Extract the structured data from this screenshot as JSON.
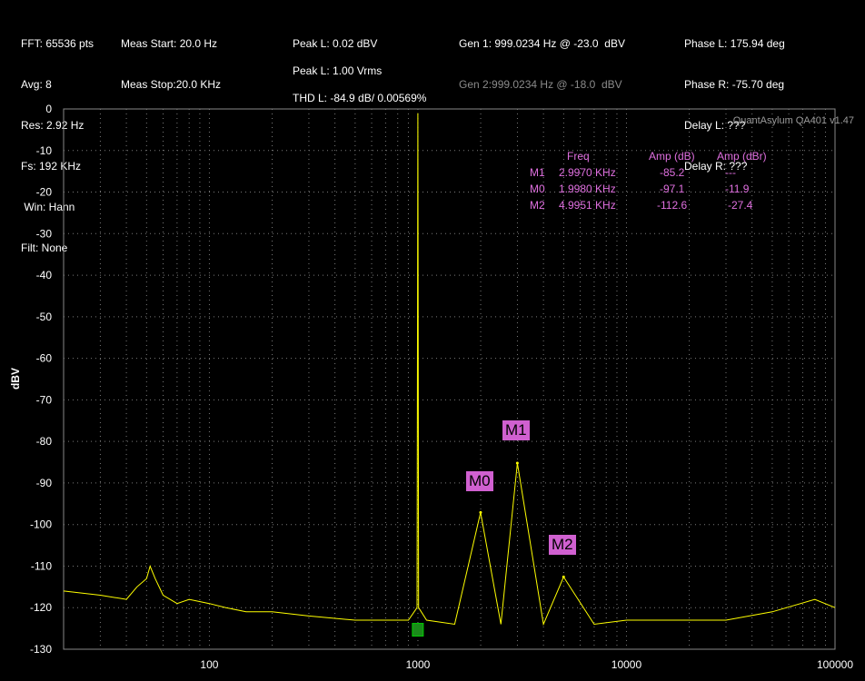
{
  "header": {
    "col1": [
      "FFT: 65536 pts",
      "Avg: 8",
      "Res: 2.92 Hz",
      "Fs: 192 KHz",
      " Win: Hann",
      "Filt: None"
    ],
    "col2": [
      "Meas Start: 20.0 Hz",
      "Meas Stop:20.0 KHz"
    ],
    "col3": {
      "peak_dbv": "Peak L: 0.02 dBV",
      "peak_vrms": "Peak L: 1.00 Vrms",
      "thd": "THD L: -84.9 dB/ 0.00569%"
    },
    "col4": {
      "gen1": "Gen 1: 999.0234 Hz @ -23.0  dBV",
      "gen2": "Gen 2:999.0234 Hz @ -18.0  dBV"
    },
    "col5": [
      "Phase L: 175.94 deg",
      "Phase R: -75.70 deg",
      "Delay L: ???",
      "Delay R: ???"
    ]
  },
  "watermark": "QuantAsylum QA401 v1.47",
  "markers_table": {
    "headers": [
      "Freq",
      "Amp (dB)",
      "Amp (dBr)"
    ],
    "rows": [
      {
        "name": "M1",
        "freq": "2.9970 KHz",
        "amp": "-85.2",
        "ampr": "---"
      },
      {
        "name": "M0",
        "freq": "1.9980 KHz",
        "amp": "-97.1",
        "ampr": "-11.9"
      },
      {
        "name": "M2",
        "freq": "4.9951 KHz",
        "amp": "-112.6",
        "ampr": "-27.4"
      }
    ]
  },
  "colors": {
    "trace": "#ffff00",
    "grid": "#7a7a7a",
    "marker": "#d060d0",
    "marker_text": "#e070e0",
    "ref_marker": "#1a8a1a"
  },
  "chart_data": {
    "type": "line",
    "title": "",
    "xlabel": "",
    "ylabel": "dBV",
    "x_scale": "log",
    "xlim": [
      20,
      100000
    ],
    "ylim": [
      -130,
      0
    ],
    "x_ticks": [
      100,
      1000,
      10000,
      100000
    ],
    "x_tick_labels": [
      "100",
      "1000",
      "10000",
      "100000"
    ],
    "y_ticks": [
      0,
      -10,
      -20,
      -30,
      -40,
      -50,
      -60,
      -70,
      -80,
      -90,
      -100,
      -110,
      -120,
      -130
    ],
    "grid": true,
    "series": [
      {
        "x": [
          20,
          30,
          40,
          45,
          50,
          52,
          55,
          60,
          70,
          80,
          100,
          120,
          150,
          200,
          300,
          500,
          700,
          900,
          990,
          999,
          1008,
          1100,
          1500,
          1998,
          2500,
          2997,
          4000,
          4995,
          7000,
          10000,
          15000,
          20000,
          30000,
          50000,
          80000,
          100000
        ],
        "y": [
          -116,
          -117,
          -118,
          -115,
          -113,
          -110,
          -113,
          -117,
          -119,
          -118,
          -119,
          -120,
          -121,
          -121,
          -122,
          -123,
          -123,
          -123,
          -120,
          -1,
          -120,
          -123,
          -124,
          -97.1,
          -124,
          -85.2,
          -124,
          -112.6,
          -124,
          -123,
          -123,
          -123,
          -123,
          -121,
          -118,
          -120
        ]
      }
    ],
    "markers": [
      {
        "name": "M0",
        "x": 1998,
        "y": -97.1
      },
      {
        "name": "M1",
        "x": 2997,
        "y": -85.2
      },
      {
        "name": "M2",
        "x": 4995,
        "y": -112.6
      }
    ]
  }
}
